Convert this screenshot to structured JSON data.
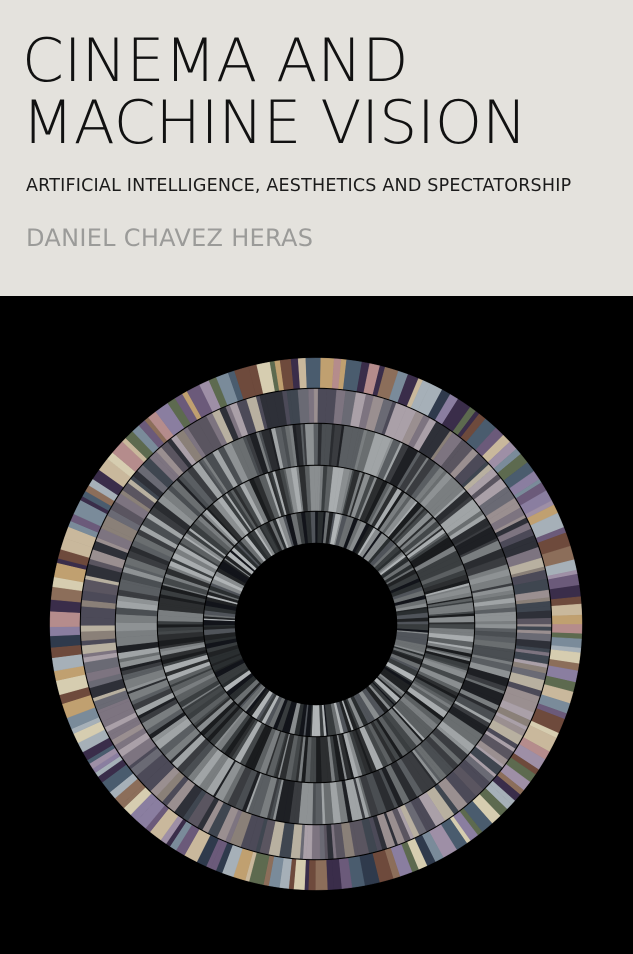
{
  "cover": {
    "title_line1": "CINEMA AND",
    "title_line2": "MACHINE VISION",
    "subtitle": "ARTIFICIAL INTELLIGENCE, AESTHETICS AND SPECTATORSHIP",
    "author": "DANIEL CHAVEZ HERAS"
  },
  "colors": {
    "title_panel": "#e4e2dd",
    "title_text": "#111111",
    "author_text": "#9b9b99",
    "art_background": "#000000"
  },
  "artwork": {
    "description_icon": "radial-film-frame-wheel",
    "ring_palettes": [
      [
        "#6b5a7a",
        "#8a7ea0",
        "#c9b89c",
        "#5d6a4f",
        "#9e8fa6",
        "#3a2d4a",
        "#d6cdb0",
        "#7a8b9a",
        "#b58c8c",
        "#4a5c6e",
        "#c0a070",
        "#8c6e5a",
        "#2f3a4c",
        "#a6b0b8",
        "#6e4a3c"
      ],
      [
        "#5a5560",
        "#7d7480",
        "#9a8f90",
        "#3f4650",
        "#aaa0a8",
        "#6a6a74",
        "#b8b0a0",
        "#4c4a58",
        "#8a8078",
        "#2e3038"
      ],
      [
        "#3a3c40",
        "#5a5e62",
        "#7a7e80",
        "#2a2c30",
        "#8e9294",
        "#4a4e52",
        "#a0a4a6",
        "#1e2024",
        "#6a6e70"
      ],
      [
        "#2c2e30",
        "#44484a",
        "#5c6062",
        "#7a7e80",
        "#1a1c1e",
        "#8a8e90",
        "#3a3e40",
        "#a8acae"
      ],
      [
        "#202224",
        "#383c3e",
        "#50545a",
        "#6c7072",
        "#12141a",
        "#888c8e",
        "#b0b4b6",
        "#2a2e30"
      ]
    ]
  }
}
